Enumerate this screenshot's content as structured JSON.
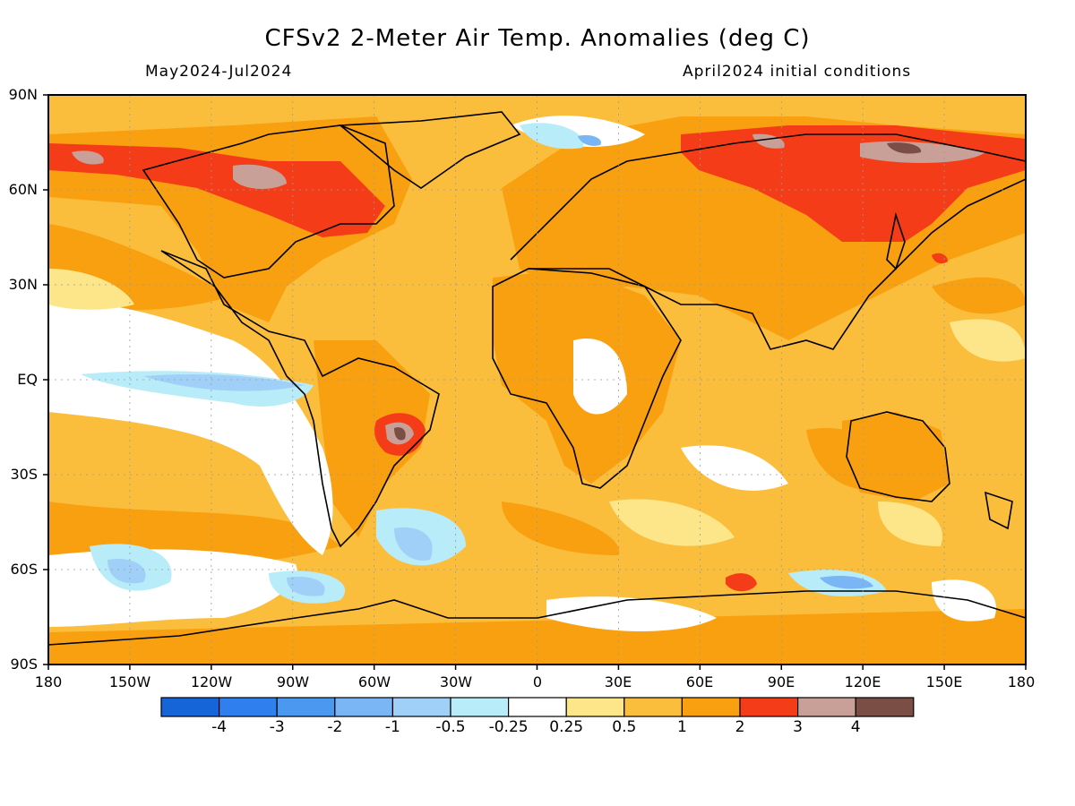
{
  "title": "CFSv2 2-Meter Air Temp. Anomalies (deg C)",
  "subtitle_left": "May2024-Jul2024",
  "subtitle_right": "April2024 initial conditions",
  "lat_labels": [
    "90N",
    "60N",
    "30N",
    "EQ",
    "30S",
    "60S",
    "90S"
  ],
  "lon_labels": [
    "180",
    "150W",
    "120W",
    "90W",
    "60W",
    "30W",
    "0",
    "30E",
    "60E",
    "90E",
    "120E",
    "150E",
    "180"
  ],
  "colorbar": {
    "labels": [
      "-4",
      "-3",
      "-2",
      "-1",
      "-0.5",
      "-0.25",
      "0.25",
      "0.5",
      "1",
      "2",
      "3",
      "4"
    ],
    "colors": [
      "#1565d8",
      "#2f80ee",
      "#4a98f0",
      "#7ab6f6",
      "#a0d0f8",
      "#b8ecf8",
      "#ffffff",
      "#fde68a",
      "#fbbe3c",
      "#f8a010",
      "#f53c18",
      "#c8a098",
      "#7a4e44"
    ]
  },
  "map_colors": {
    "background": "#fbbe3c",
    "ocean_strong": "#f8a010",
    "neutral": "#ffffff",
    "light": "#fde68a",
    "cool_1": "#b8ecf8",
    "cool_2": "#a0d0f8",
    "cool_3": "#7ab6f6",
    "hot": "#f53c18",
    "very_hot": "#c8a098",
    "extreme": "#7a4e44",
    "coastline": "#000000"
  }
}
